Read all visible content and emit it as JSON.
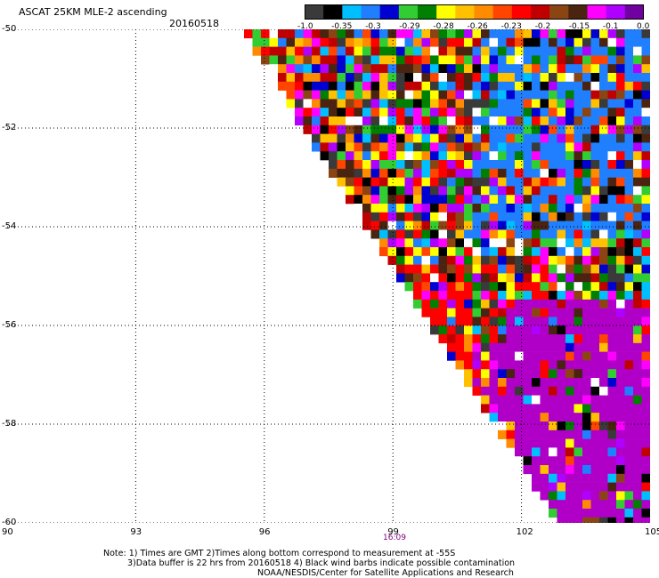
{
  "header": {
    "title": "ASCAT 25KM MLE-2 ascending",
    "date": "20160518"
  },
  "colorbar": {
    "colors": [
      "#3a3a3a",
      "#000000",
      "#00bfff",
      "#1f7fff",
      "#0000d0",
      "#32cd32",
      "#008000",
      "#ffff00",
      "#ffc000",
      "#ff8c00",
      "#ff4500",
      "#ff0000",
      "#c00000",
      "#8b4513",
      "#4a2311",
      "#ff00ff",
      "#b000ff",
      "#7000a0"
    ],
    "tick_labels": [
      "-1.0",
      "-0.35",
      "-0.3",
      "-0.29",
      "-0.28",
      "-0.26",
      "-0.23",
      "-0.2",
      "-0.15",
      "-0.1",
      "0.0"
    ]
  },
  "axes": {
    "lat_labels": [
      "-50",
      "-52",
      "-54",
      "-56",
      "-58",
      "-60"
    ],
    "lon_labels": [
      "90",
      "93",
      "96",
      "99",
      "102",
      "105"
    ],
    "time_label": "16:09"
  },
  "notes": {
    "line1": "Note: 1) Times are GMT 2)Times along bottom correspond to measurement at -55S",
    "line2": "3)Data buffer is 22 hrs from 20160518 4) Black wind barbs indicate possible contamination",
    "line3": "NOAA/NESDIS/Center for Satellite Applications and Research"
  },
  "swath": {
    "lon_range": [
      90,
      105
    ],
    "lat_range": [
      -60,
      -50
    ],
    "edge_top_lon": 95.6,
    "edge_bottom_lon": 103.0,
    "palette": [
      "#3a3a3a",
      "#000000",
      "#00bfff",
      "#1f7fff",
      "#0000d0",
      "#32cd32",
      "#008000",
      "#ffff00",
      "#ffc000",
      "#ff8c00",
      "#ff4500",
      "#ff0000",
      "#c00000",
      "#8b4513",
      "#4a2311",
      "#ff00ff",
      "#b000ff",
      "#ffffff"
    ],
    "dominant_region_color": "#b000c8"
  }
}
